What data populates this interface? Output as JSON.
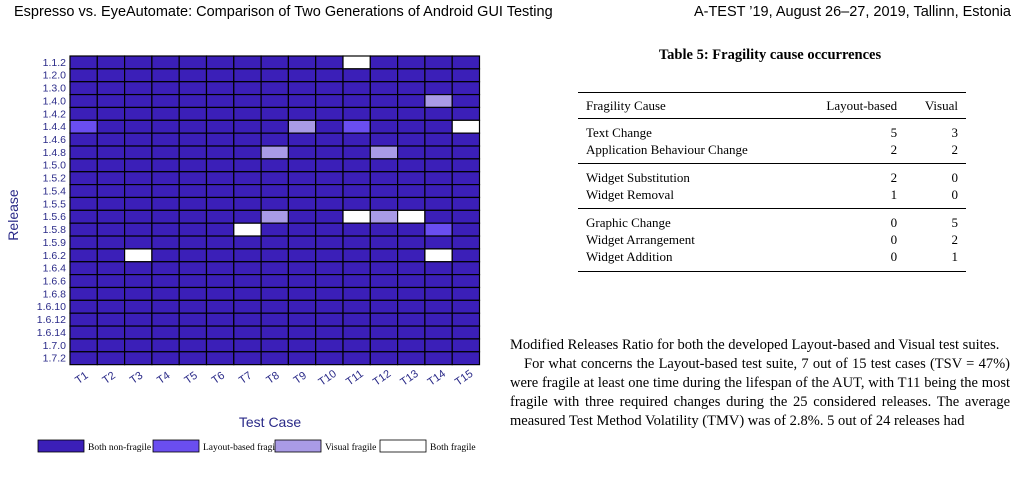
{
  "header": {
    "left": "Espresso vs. EyeAutomate: Comparison of Two Generations of Android GUI Testing",
    "right": "A-TEST ’19, August 26–27, 2019, Tallinn, Estonia"
  },
  "chart_data": {
    "type": "heatmap",
    "xlabel": "Test Case",
    "ylabel": "Release",
    "x": [
      "T1",
      "T2",
      "T3",
      "T4",
      "T5",
      "T6",
      "T7",
      "T8",
      "T9",
      "T10",
      "T11",
      "T12",
      "T13",
      "T14",
      "T15"
    ],
    "y": [
      "1.1.2",
      "1.2.0",
      "1.3.0",
      "1.4.0",
      "1.4.2",
      "1.4.4",
      "1.4.6",
      "1.4.8",
      "1.5.0",
      "1.5.2",
      "1.5.4",
      "1.5.5",
      "1.5.6",
      "1.5.8",
      "1.5.9",
      "1.6.2",
      "1.6.4",
      "1.6.6",
      "1.6.8",
      "1.6.10",
      "1.6.12",
      "1.6.14",
      "1.7.0",
      "1.7.2"
    ],
    "categories": [
      "Both non-fragile",
      "Layout-based fragile",
      "Visual fragile",
      "Both fragile"
    ],
    "colors": [
      "#3b1fb8",
      "#6a4ef0",
      "#a99be6",
      "#ffffff"
    ],
    "cells": [
      {
        "release": "1.1.2",
        "test": "T11",
        "category": "Both fragile"
      },
      {
        "release": "1.4.0",
        "test": "T14",
        "category": "Visual fragile"
      },
      {
        "release": "1.4.4",
        "test": "T1",
        "category": "Layout-based fragile"
      },
      {
        "release": "1.4.4",
        "test": "T9",
        "category": "Visual fragile"
      },
      {
        "release": "1.4.4",
        "test": "T11",
        "category": "Layout-based fragile"
      },
      {
        "release": "1.4.4",
        "test": "T15",
        "category": "Both fragile"
      },
      {
        "release": "1.4.8",
        "test": "T8",
        "category": "Visual fragile"
      },
      {
        "release": "1.4.8",
        "test": "T12",
        "category": "Visual fragile"
      },
      {
        "release": "1.5.6",
        "test": "T8",
        "category": "Visual fragile"
      },
      {
        "release": "1.5.6",
        "test": "T11",
        "category": "Both fragile"
      },
      {
        "release": "1.5.6",
        "test": "T12",
        "category": "Visual fragile"
      },
      {
        "release": "1.5.6",
        "test": "T13",
        "category": "Both fragile"
      },
      {
        "release": "1.5.8",
        "test": "T7",
        "category": "Both fragile"
      },
      {
        "release": "1.5.8",
        "test": "T14",
        "category": "Layout-based fragile"
      },
      {
        "release": "1.6.2",
        "test": "T3",
        "category": "Both fragile"
      },
      {
        "release": "1.6.2",
        "test": "T14",
        "category": "Both fragile"
      }
    ],
    "default_category": "Both non-fragile"
  },
  "table": {
    "caption": "Table 5: Fragility cause occurrences",
    "headers": [
      "Fragility Cause",
      "Layout-based",
      "Visual"
    ],
    "rows": [
      [
        "Text Change",
        "5",
        "3"
      ],
      [
        "Application Behaviour Change",
        "2",
        "2"
      ],
      [
        "Widget Substitution",
        "2",
        "0"
      ],
      [
        "Widget Removal",
        "1",
        "0"
      ],
      [
        "Graphic Change",
        "0",
        "5"
      ],
      [
        "Widget Arrangement",
        "0",
        "2"
      ],
      [
        "Widget Addition",
        "0",
        "1"
      ]
    ]
  },
  "body": {
    "p1": "Modified Releases Ratio for both the developed Layout-based and Visual test suites.",
    "p2": "For what concerns the Layout-based test suite, 7 out of 15 test cases (TSV = 47%) were fragile at least one time during the lifespan of the AUT, with T11 being the most fragile with three required changes during the 25 considered releases. The average measured Test Method Volatility (TMV) was of 2.8%. 5 out of 24 releases had"
  }
}
